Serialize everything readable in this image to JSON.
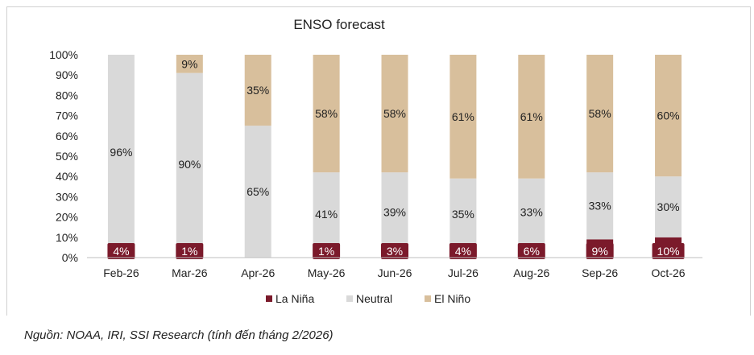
{
  "chart_data": {
    "type": "bar",
    "stacked": true,
    "title": "ENSO forecast",
    "categories": [
      "Feb-26",
      "Mar-26",
      "Apr-26",
      "May-26",
      "Jun-26",
      "Jul-26",
      "Aug-26",
      "Sep-26",
      "Oct-26"
    ],
    "series": [
      {
        "name": "La Niña",
        "color": "#7b1a2b",
        "values": [
          4,
          1,
          0,
          1,
          3,
          4,
          6,
          9,
          10
        ],
        "labels": [
          "4%",
          "1%",
          "",
          "1%",
          "3%",
          "4%",
          "6%",
          "9%",
          "10%"
        ]
      },
      {
        "name": "Neutral",
        "color": "#d9d9d9",
        "values": [
          96,
          90,
          65,
          41,
          39,
          35,
          33,
          33,
          30
        ],
        "labels": [
          "96%",
          "90%",
          "65%",
          "41%",
          "39%",
          "35%",
          "33%",
          "33%",
          "30%"
        ]
      },
      {
        "name": "El Niño",
        "color": "#d8bf9c",
        "values": [
          0,
          9,
          35,
          58,
          58,
          61,
          61,
          58,
          60
        ],
        "labels": [
          "",
          "9%",
          "35%",
          "58%",
          "58%",
          "61%",
          "61%",
          "58%",
          "60%"
        ]
      }
    ],
    "y_ticks": [
      "0%",
      "10%",
      "20%",
      "30%",
      "40%",
      "50%",
      "60%",
      "70%",
      "80%",
      "90%",
      "100%"
    ],
    "ylim": [
      0,
      100
    ],
    "legend_position": "bottom",
    "grid": false
  },
  "source": "Nguồn: NOAA, IRI, SSI Research (tính đến tháng 2/2026)"
}
